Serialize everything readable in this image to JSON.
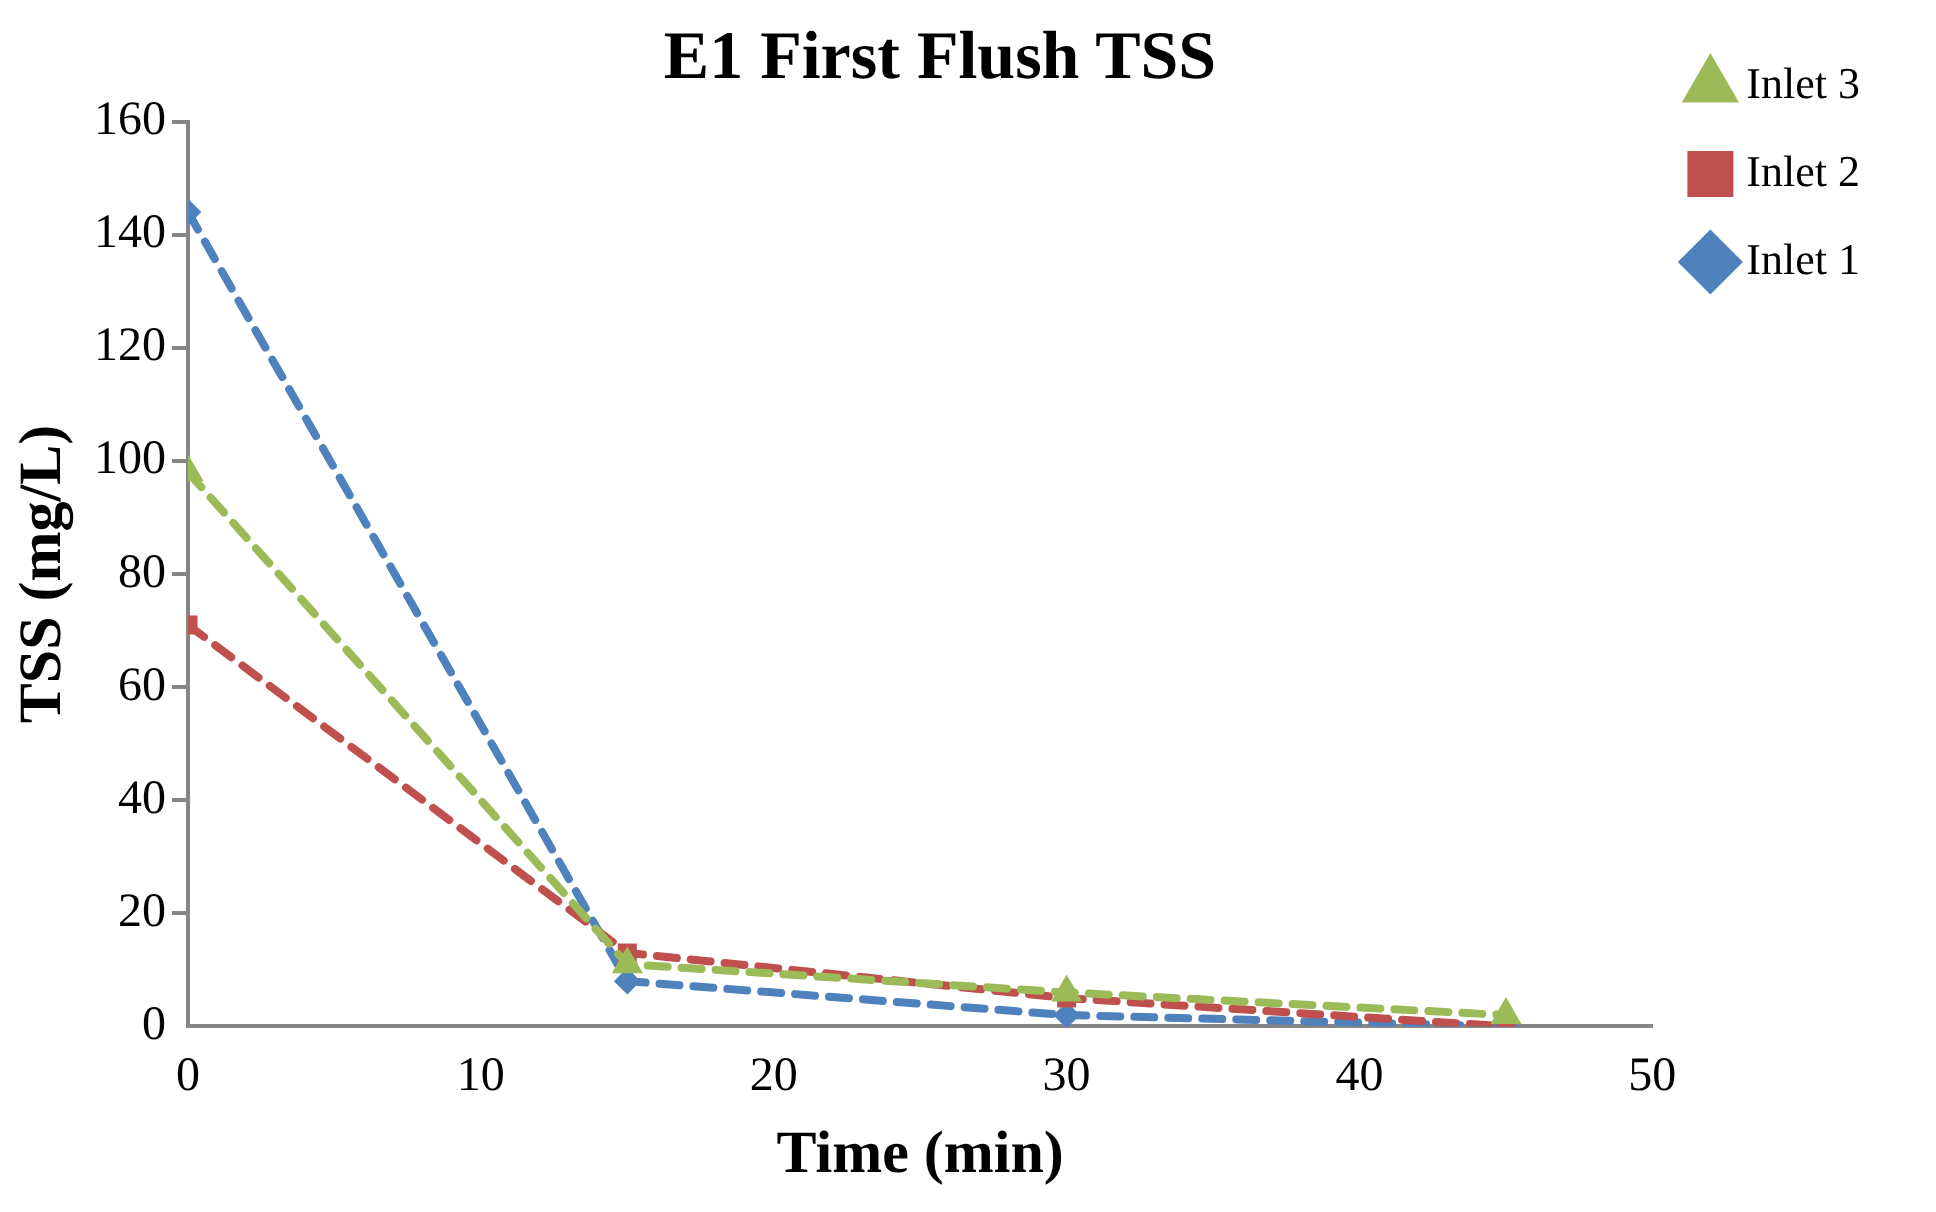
{
  "chart_data": {
    "type": "line",
    "title": "E1 First Flush TSS",
    "xlabel": "Time (min)",
    "ylabel": "TSS (mg/L)",
    "x": [
      0,
      15,
      30,
      45
    ],
    "series": [
      {
        "name": "Inlet 1",
        "color": "#4f81bd",
        "marker": "diamond",
        "values": [
          144,
          8,
          2,
          0
        ]
      },
      {
        "name": "Inlet 2",
        "color": "#c0504d",
        "marker": "square",
        "values": [
          71,
          13,
          5,
          0
        ]
      },
      {
        "name": "Inlet 3",
        "color": "#9bbb59",
        "marker": "triangle",
        "values": [
          98,
          11,
          6,
          2
        ]
      }
    ],
    "xlim": [
      0,
      50
    ],
    "xticks": [
      0,
      10,
      20,
      30,
      40,
      50
    ],
    "ylim": [
      0,
      160
    ],
    "yticks": [
      0,
      20,
      40,
      60,
      80,
      100,
      120,
      140,
      160
    ],
    "grid": false,
    "legend": "top right",
    "line_style": "dashed"
  }
}
